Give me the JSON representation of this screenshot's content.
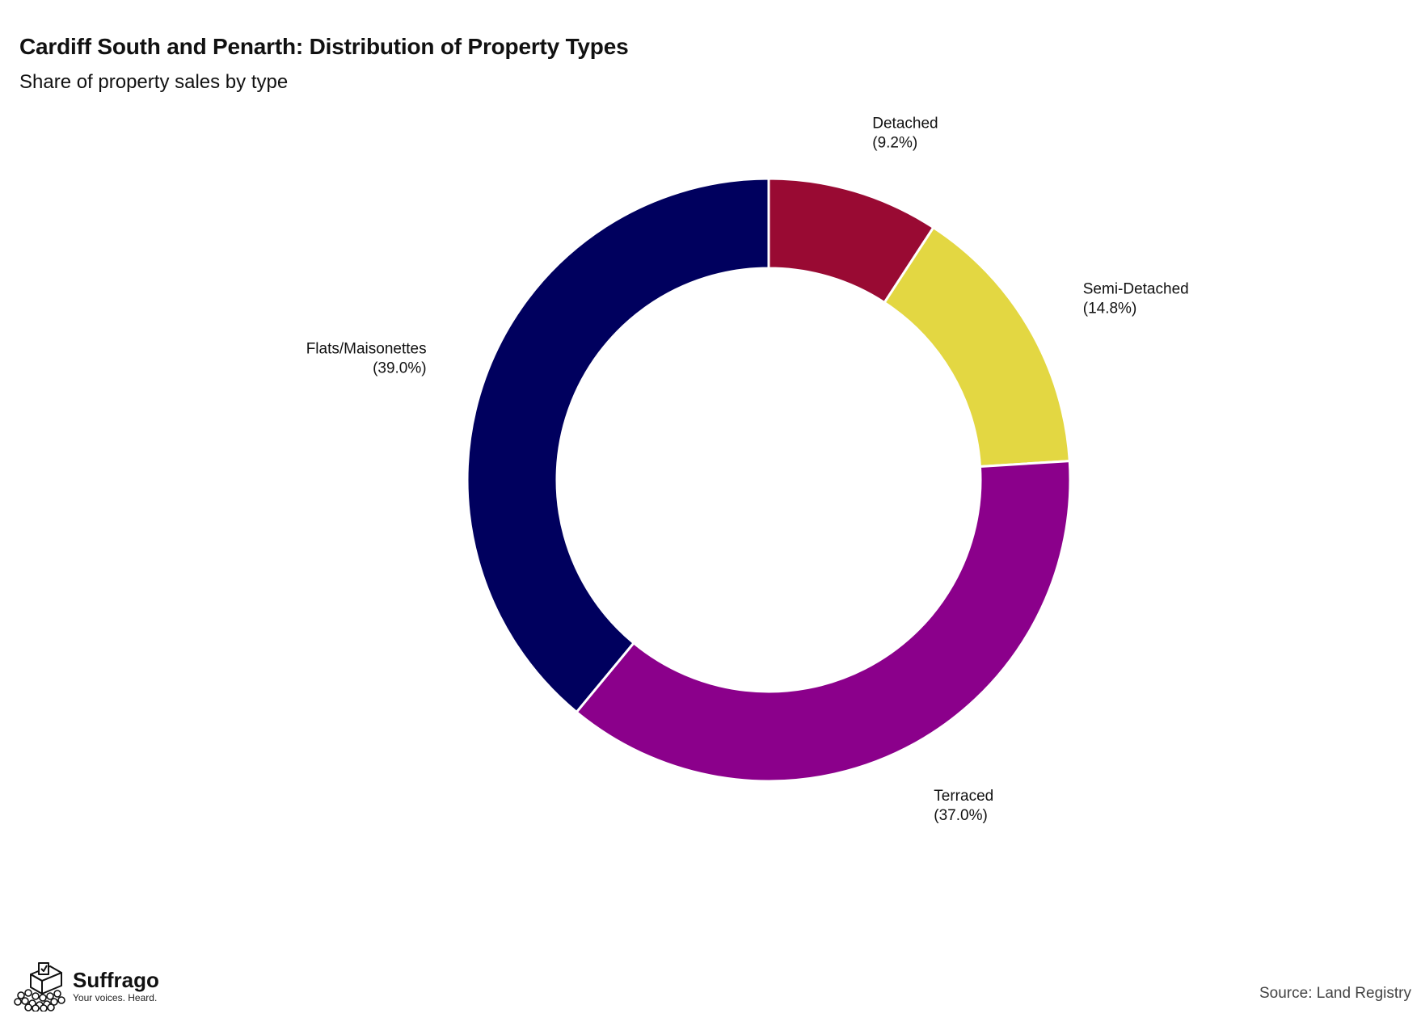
{
  "title": "Cardiff South and Penarth: Distribution of Property Types",
  "subtitle": "Share of property sales by type",
  "source": "Source: Land Registry",
  "brand": {
    "name": "Suffrago",
    "tagline": "Your voices. Heard.",
    "logo_icon": "ballot-box-crowd-icon"
  },
  "chart_data": {
    "type": "pie",
    "variant": "donut",
    "title": "Cardiff South and Penarth: Distribution of Property Types",
    "subtitle": "Share of property sales by type",
    "start_angle_deg": 0,
    "direction": "clockwise",
    "slices": [
      {
        "label": "Detached",
        "value": 9.2,
        "value_label": "(9.2%)",
        "color": "#990a33"
      },
      {
        "label": "Semi-Detached",
        "value": 14.8,
        "value_label": "(14.8%)",
        "color": "#e3d742"
      },
      {
        "label": "Terraced",
        "value": 37.0,
        "value_label": "(37.0%)",
        "color": "#8b008b"
      },
      {
        "label": "Flats/Maisonettes",
        "value": 39.0,
        "value_label": "(39.0%)",
        "color": "#00005e"
      }
    ]
  }
}
